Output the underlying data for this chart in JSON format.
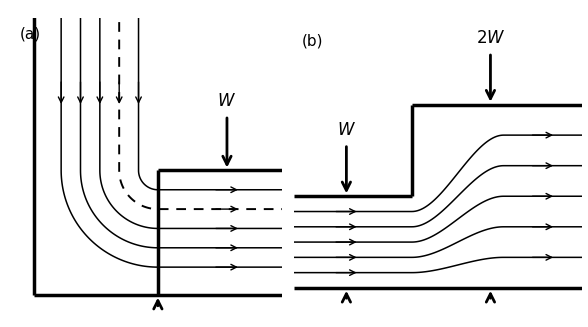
{
  "fig_width": 5.88,
  "fig_height": 3.27,
  "dpi": 100,
  "bg_color": "#ffffff",
  "lc": "#000000",
  "panel_a_label": "(a)",
  "panel_b_label": "(b)"
}
